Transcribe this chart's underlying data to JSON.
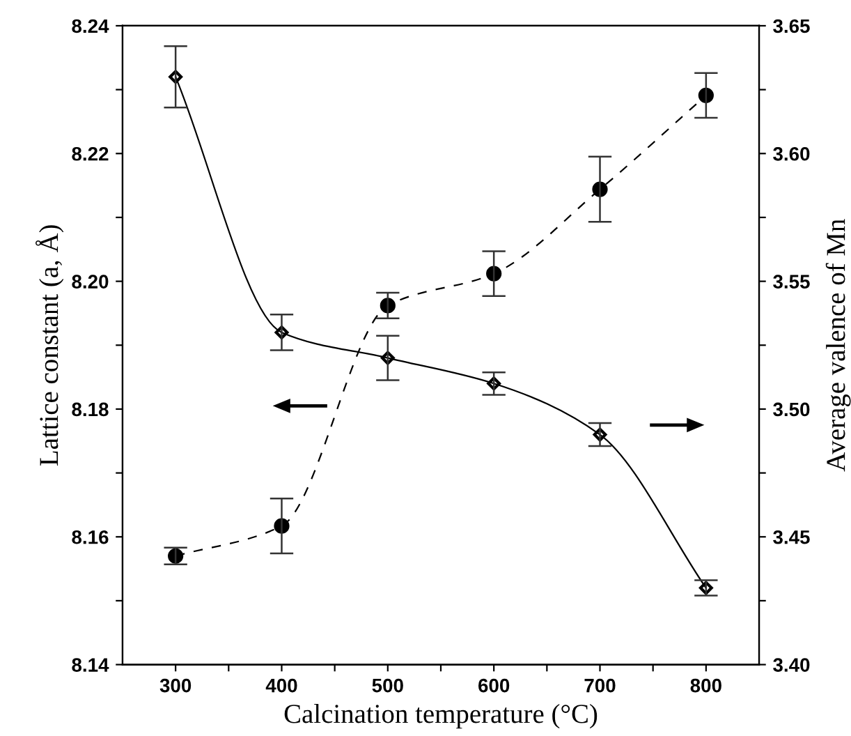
{
  "chart_data": {
    "type": "line",
    "xlabel": "Calcination temperature (°C)",
    "ylabel": "Lattice constant (a, Å)",
    "y2label": "Average valence of Mn",
    "x": [
      300,
      400,
      500,
      600,
      700,
      800
    ],
    "series": [
      {
        "color": "#000000",
        "axis": "y",
        "line_style": "dashed",
        "marker": "circle",
        "values": [
          8.157,
          8.1617,
          8.1962,
          8.2012,
          8.2144,
          8.2291
        ],
        "errors": [
          0.0013,
          0.0043,
          0.002,
          0.0035,
          0.0051,
          0.0035
        ]
      },
      {
        "color": "#000000",
        "axis": "y2",
        "line_style": "solid",
        "marker": "diamond",
        "values": [
          3.63,
          3.53,
          3.52,
          3.51,
          3.49,
          3.43
        ],
        "errors": [
          0.012,
          0.007,
          0.0087,
          0.0044,
          0.0045,
          0.003
        ]
      }
    ],
    "xlim": [
      250,
      850
    ],
    "xticks": [
      300,
      {
        "value": 350,
        "label": null
      },
      400,
      {
        "value": 450,
        "label": null
      },
      500,
      {
        "value": 550,
        "label": null
      },
      600,
      {
        "value": 650,
        "label": null
      },
      700,
      {
        "value": 750,
        "label": null
      },
      800
    ],
    "ylim": [
      8.14,
      8.24
    ],
    "yticks": [
      8.14,
      {
        "value": 8.15,
        "label": null
      },
      8.16,
      {
        "value": 8.17,
        "label": null
      },
      8.18,
      {
        "value": 8.19,
        "label": null
      },
      {
        "value": 8.2,
        "label": "8.20"
      },
      {
        "value": 8.21,
        "label": null
      },
      8.22,
      {
        "value": 8.23,
        "label": null
      },
      8.24
    ],
    "y2lim": [
      3.4,
      3.65
    ],
    "y2ticks": [
      {
        "value": 3.4,
        "label": "3.40"
      },
      {
        "value": 3.425,
        "label": null
      },
      3.45,
      {
        "value": 3.475,
        "label": null
      },
      {
        "value": 3.5,
        "label": "3.50"
      },
      {
        "value": 3.525,
        "label": null
      },
      3.55,
      {
        "value": 3.575,
        "label": null
      },
      {
        "value": 3.6,
        "label": "3.60"
      },
      {
        "value": 3.625,
        "label": null
      },
      3.65
    ],
    "grid": false
  }
}
